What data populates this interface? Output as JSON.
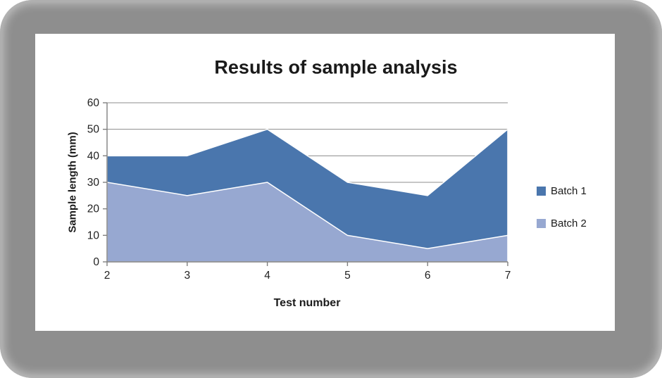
{
  "frame": {
    "background": "#8E8E8E"
  },
  "chart": {
    "title": "Results of sample analysis",
    "axes": {
      "x_title": "Test number",
      "y_title": "Sample length (mm)"
    },
    "legend": {
      "position": "right",
      "items": [
        {
          "label": "Batch 1",
          "color": "#4A76AD"
        },
        {
          "label": "Batch 2",
          "color": "#97A8D1"
        }
      ]
    }
  },
  "chart_data": {
    "type": "area",
    "stacked": false,
    "title": "Results of sample analysis",
    "xlabel": "Test number",
    "ylabel": "Sample length (mm)",
    "x": [
      2,
      3,
      4,
      5,
      6,
      7
    ],
    "series": [
      {
        "name": "Batch 1",
        "color": "#4A76AD",
        "values": [
          40,
          40,
          50,
          30,
          25,
          50
        ]
      },
      {
        "name": "Batch 2",
        "color": "#97A8D1",
        "values": [
          30,
          25,
          30,
          10,
          5,
          10
        ]
      }
    ],
    "xlim": [
      2,
      7
    ],
    "ylim": [
      0,
      60
    ],
    "xticks": [
      2,
      3,
      4,
      5,
      6,
      7
    ],
    "yticks": [
      0,
      10,
      20,
      30,
      40,
      50,
      60
    ],
    "grid": "horizontal-major",
    "grid_color": "#8C8C8C",
    "axis_color": "#7F7F7F",
    "tick_label_color": "#1F1F1F",
    "series_outline_color": "#FFFFFF",
    "legend_position": "right"
  }
}
